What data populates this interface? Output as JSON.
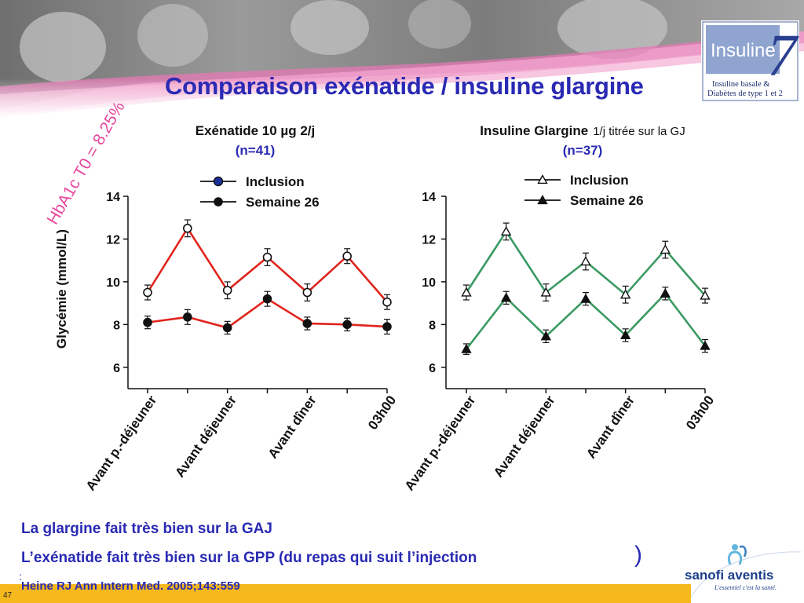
{
  "title": "Comparaison exénatide / insuline glargine",
  "side_label": "HbA1c T0 = 8.25%",
  "logo": {
    "top_text": "Insuline",
    "number": "7",
    "line1": "Insuline basale &",
    "line2": "Diabètes de type 1 et 2"
  },
  "sanofi": {
    "brand": "sanofi aventis",
    "tagline": "L'essentiel c'est la santé."
  },
  "messages": {
    "line1": "La glargine fait très bien sur la GAJ",
    "line2": "L’exénatide fait très bien sur la GPP (du repas qui suit l’injection",
    "paren": ")",
    "bullet": ":"
  },
  "reference": "Heine RJ  Ann Intern Med. 2005;143:559",
  "page_number": "47",
  "colors": {
    "title": "#2a2ab4",
    "accent": "#e8489e",
    "exenatide": "#e0241c",
    "glargine": "#3a9a62",
    "bar": "#f5b81d"
  },
  "chart_data": [
    {
      "type": "line",
      "title": "Exénatide 10 µg 2/j",
      "title_suffix": "",
      "subtitle": "(n=41)",
      "ylabel": "Glycémie (mmol/L)",
      "ylim": [
        5,
        14
      ],
      "yticks": [
        6,
        8,
        10,
        12,
        14
      ],
      "x_tick_labels": [
        "Avant p.-déjeuner",
        "Avant déjeuner",
        "Avant dîner",
        "03h00"
      ],
      "marker_style": "circle",
      "series": [
        {
          "name": "Inclusion",
          "values": [
            9.5,
            12.5,
            9.6,
            11.15,
            9.5,
            11.2,
            9.05
          ],
          "error": [
            0.2,
            0.25,
            0.25,
            0.25,
            0.25,
            0.2,
            0.2
          ]
        },
        {
          "name": "Semaine 26",
          "values": [
            8.1,
            8.35,
            7.85,
            9.2,
            8.05,
            8.0,
            7.9
          ],
          "error": [
            0.15,
            0.2,
            0.15,
            0.2,
            0.15,
            0.15,
            0.2
          ]
        }
      ]
    },
    {
      "type": "line",
      "title": "Insuline Glargine",
      "title_suffix": "1/j titrée sur la GJ",
      "subtitle": "(n=37)",
      "ylabel": "",
      "ylim": [
        5,
        14
      ],
      "yticks": [
        6,
        8,
        10,
        12,
        14
      ],
      "x_tick_labels": [
        "Avant p.-déjeuner",
        "Avant déjeuner",
        "Avant dîner",
        "03h00"
      ],
      "marker_style": "triangle",
      "series": [
        {
          "name": "Inclusion",
          "values": [
            9.5,
            12.35,
            9.5,
            10.95,
            9.4,
            11.5,
            9.35
          ],
          "error": [
            0.2,
            0.25,
            0.25,
            0.25,
            0.25,
            0.25,
            0.2
          ]
        },
        {
          "name": "Semaine 26",
          "values": [
            6.85,
            9.25,
            7.45,
            9.2,
            7.5,
            9.45,
            7.0
          ],
          "error": [
            0.1,
            0.15,
            0.15,
            0.15,
            0.15,
            0.15,
            0.15
          ]
        }
      ]
    }
  ]
}
